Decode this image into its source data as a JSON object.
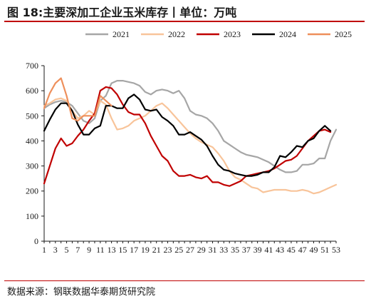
{
  "title": "图 18:主要深加工企业玉米库存丨单位：万吨",
  "source": "数据来源：钢联数据华泰期货研究院",
  "chart_data": {
    "type": "line",
    "title": "图 18:主要深加工企业玉米库存丨单位：万吨",
    "xlabel": "",
    "ylabel": "",
    "ylim": [
      0,
      700
    ],
    "yticks": [
      0,
      100,
      200,
      300,
      400,
      500,
      600,
      700
    ],
    "xlim": [
      1,
      53
    ],
    "xticks": [
      1,
      3,
      5,
      7,
      9,
      11,
      13,
      15,
      17,
      19,
      21,
      23,
      25,
      27,
      29,
      31,
      33,
      35,
      37,
      39,
      41,
      43,
      45,
      47,
      49,
      51,
      53
    ],
    "legend_position": "top",
    "grid": false,
    "series": [
      {
        "name": "2021",
        "color": "#a6a6a6",
        "x": [
          1,
          2,
          3,
          4,
          5,
          6,
          7,
          8,
          9,
          10,
          11,
          12,
          13,
          14,
          15,
          16,
          17,
          18,
          19,
          20,
          21,
          22,
          23,
          24,
          25,
          26,
          27,
          28,
          29,
          30,
          31,
          32,
          33,
          34,
          35,
          36,
          37,
          38,
          39,
          40,
          41,
          42,
          43,
          44,
          45,
          46,
          47,
          48,
          49,
          50,
          51,
          52,
          53
        ],
        "y": [
          530,
          545,
          555,
          560,
          555,
          540,
          510,
          480,
          470,
          490,
          560,
          580,
          630,
          640,
          640,
          635,
          630,
          620,
          595,
          585,
          600,
          605,
          600,
          590,
          600,
          570,
          520,
          505,
          500,
          490,
          470,
          440,
          400,
          385,
          370,
          355,
          345,
          340,
          335,
          325,
          315,
          300,
          285,
          275,
          275,
          280,
          305,
          305,
          310,
          330,
          330,
          400,
          445
        ]
      },
      {
        "name": "2022",
        "color": "#f8c49a",
        "x": [
          1,
          2,
          3,
          4,
          5,
          6,
          7,
          8,
          9,
          10,
          11,
          12,
          13,
          14,
          15,
          16,
          17,
          18,
          19,
          20,
          21,
          22,
          23,
          24,
          25,
          26,
          27,
          28,
          29,
          30,
          31,
          32,
          33,
          34,
          35,
          36,
          37,
          38,
          39,
          40,
          41,
          42,
          43,
          44,
          45,
          46,
          47,
          48,
          49,
          50,
          51,
          52,
          53
        ],
        "y": [
          540,
          550,
          565,
          570,
          560,
          520,
          490,
          500,
          520,
          505,
          560,
          545,
          490,
          445,
          450,
          460,
          480,
          490,
          500,
          520,
          540,
          550,
          530,
          505,
          480,
          455,
          430,
          410,
          395,
          385,
          375,
          350,
          320,
          280,
          255,
          245,
          230,
          215,
          210,
          195,
          200,
          205,
          205,
          205,
          200,
          200,
          205,
          200,
          190,
          195,
          205,
          215,
          225
        ]
      },
      {
        "name": "2023",
        "color": "#c00000",
        "x": [
          1,
          2,
          3,
          4,
          5,
          6,
          7,
          8,
          9,
          10,
          11,
          12,
          13,
          14,
          15,
          16,
          17,
          18,
          19,
          20,
          21,
          22,
          23,
          24,
          25,
          26,
          27,
          28,
          29,
          30,
          31,
          32,
          33,
          34,
          35,
          36,
          37,
          38,
          39,
          40,
          41,
          42,
          43,
          44,
          45,
          46,
          47,
          48,
          49,
          50,
          51,
          52
        ],
        "y": [
          230,
          300,
          370,
          410,
          380,
          390,
          420,
          445,
          480,
          510,
          600,
          615,
          610,
          585,
          545,
          515,
          505,
          505,
          470,
          420,
          380,
          340,
          320,
          280,
          260,
          260,
          265,
          255,
          250,
          260,
          235,
          235,
          225,
          220,
          230,
          240,
          260,
          265,
          270,
          275,
          280,
          290,
          305,
          320,
          325,
          340,
          370,
          400,
          420,
          440,
          445,
          435
        ]
      },
      {
        "name": "2024",
        "color": "#000000",
        "x": [
          1,
          2,
          3,
          4,
          5,
          6,
          7,
          8,
          9,
          10,
          11,
          12,
          13,
          14,
          15,
          16,
          17,
          18,
          19,
          20,
          21,
          22,
          23,
          24,
          25,
          26,
          27,
          28,
          29,
          30,
          31,
          32,
          33,
          34,
          35,
          36,
          37,
          38,
          39,
          40,
          41,
          42,
          43,
          44,
          45,
          46,
          47,
          48,
          49,
          50,
          51,
          52
        ],
        "y": [
          440,
          485,
          525,
          550,
          550,
          520,
          465,
          425,
          425,
          450,
          460,
          540,
          540,
          530,
          530,
          570,
          585,
          565,
          525,
          520,
          525,
          495,
          480,
          460,
          425,
          425,
          435,
          420,
          405,
          380,
          340,
          305,
          285,
          280,
          270,
          265,
          260,
          260,
          265,
          275,
          275,
          295,
          340,
          335,
          355,
          380,
          375,
          400,
          410,
          440,
          460,
          440
        ]
      },
      {
        "name": "2025",
        "color": "#ee8f5b",
        "x": [
          1,
          2,
          3,
          4,
          5,
          6,
          7,
          8,
          9,
          10,
          11,
          12,
          13
        ],
        "y": [
          530,
          590,
          630,
          650,
          580,
          490,
          480,
          500,
          500,
          500,
          580,
          560,
          540
        ]
      }
    ]
  }
}
